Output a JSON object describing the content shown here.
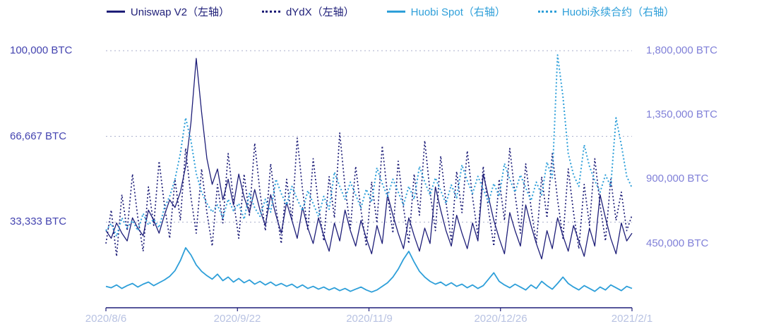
{
  "colors": {
    "navy": "#1e1e78",
    "blue": "#2e9fd9",
    "left_label": "#4444b0",
    "right_label": "#8080d8",
    "x_label": "#b8c2e2",
    "grid": "#a9aecb"
  },
  "chart_data": {
    "type": "line",
    "title": "",
    "legend_position": "top",
    "grid": "horizontal-dotted",
    "x_tick_labels": [
      "2020/8/6",
      "2020/9/22",
      "2020/11/9",
      "2020/12/26",
      "2021/2/1"
    ],
    "left_axis": {
      "ticks": [
        "100,000 BTC",
        "66,667 BTC",
        "33,333 BTC"
      ],
      "tick_values": [
        100000,
        66667,
        33333
      ],
      "min": 0,
      "max": 100000
    },
    "right_axis": {
      "ticks": [
        "1,800,000 BTC",
        "1,350,000 BTC",
        "900,000 BTC",
        "450,000 BTC"
      ],
      "tick_values": [
        1800000,
        1350000,
        900000,
        450000
      ],
      "min": 0,
      "max": 1800000
    },
    "series": [
      {
        "name": "Uniswap V2",
        "label": "Uniswap V2（左轴）",
        "axis": "left",
        "style": "solid",
        "color": "#1e1e78",
        "values": [
          30000,
          27000,
          33000,
          29000,
          26000,
          35000,
          31000,
          28000,
          38000,
          34000,
          29000,
          36000,
          42000,
          39000,
          45000,
          55000,
          72000,
          97000,
          76000,
          58000,
          48000,
          54000,
          42000,
          50000,
          40000,
          52000,
          43000,
          37000,
          46000,
          38000,
          32000,
          44000,
          36000,
          29000,
          41000,
          34000,
          27000,
          39000,
          31000,
          25000,
          35000,
          28000,
          22000,
          33000,
          26000,
          38000,
          30000,
          24000,
          34000,
          27000,
          21000,
          32000,
          25000,
          44000,
          36000,
          29000,
          23000,
          35000,
          28000,
          22000,
          31000,
          25000,
          47000,
          38000,
          30000,
          24000,
          36000,
          29000,
          23000,
          33000,
          26000,
          52000,
          43000,
          34000,
          27000,
          21000,
          37000,
          30000,
          24000,
          40000,
          32000,
          25000,
          19000,
          30000,
          23000,
          35000,
          28000,
          22000,
          32000,
          26000,
          20000,
          31000,
          24000,
          44000,
          35000,
          27000,
          21000,
          33000,
          26000,
          29000
        ]
      },
      {
        "name": "dYdX",
        "label": "dYdX（左轴）",
        "axis": "left",
        "style": "dotted",
        "color": "#1e1e78",
        "values": [
          25000,
          38000,
          20000,
          44000,
          30000,
          52000,
          35000,
          22000,
          47000,
          32000,
          57000,
          40000,
          27000,
          50000,
          34000,
          62000,
          43000,
          29000,
          54000,
          37000,
          24000,
          48000,
          33000,
          60000,
          42000,
          27000,
          52000,
          36000,
          64000,
          45000,
          30000,
          56000,
          39000,
          25000,
          50000,
          34000,
          66000,
          46000,
          30000,
          58000,
          40000,
          26000,
          51000,
          35000,
          68000,
          47000,
          31000,
          55000,
          38000,
          24000,
          49000,
          33000,
          63000,
          44000,
          29000,
          57000,
          39000,
          25000,
          52000,
          36000,
          65000,
          45000,
          30000,
          59000,
          41000,
          26000,
          53000,
          37000,
          61000,
          43000,
          28000,
          55000,
          38000,
          24000,
          50000,
          34000,
          62000,
          44000,
          29000,
          56000,
          39000,
          25000,
          51000,
          35000,
          60000,
          42000,
          27000,
          54000,
          37000,
          23000,
          48000,
          32000,
          58000,
          40000,
          26000,
          50000,
          34000,
          45000,
          30000,
          36000
        ]
      },
      {
        "name": "Huobi Spot",
        "label": "Huobi Spot（右轴）",
        "axis": "right",
        "style": "solid",
        "color": "#2e9fd9",
        "values": [
          150000,
          140000,
          160000,
          135000,
          155000,
          170000,
          145000,
          165000,
          180000,
          155000,
          175000,
          195000,
          220000,
          260000,
          330000,
          420000,
          370000,
          300000,
          255000,
          225000,
          200000,
          235000,
          190000,
          215000,
          180000,
          205000,
          175000,
          195000,
          165000,
          185000,
          160000,
          180000,
          155000,
          170000,
          150000,
          165000,
          140000,
          160000,
          135000,
          150000,
          130000,
          145000,
          125000,
          140000,
          120000,
          135000,
          115000,
          130000,
          145000,
          125000,
          110000,
          125000,
          150000,
          175000,
          215000,
          270000,
          340000,
          395000,
          320000,
          255000,
          215000,
          185000,
          165000,
          180000,
          155000,
          175000,
          150000,
          165000,
          140000,
          160000,
          135000,
          155000,
          200000,
          245000,
          185000,
          160000,
          140000,
          165000,
          145000,
          125000,
          160000,
          135000,
          185000,
          155000,
          130000,
          170000,
          215000,
          170000,
          145000,
          125000,
          155000,
          135000,
          115000,
          145000,
          125000,
          160000,
          140000,
          120000,
          150000,
          135000
        ]
      },
      {
        "name": "Huobi永续合约",
        "label": "Huobi永续合约（右轴）",
        "axis": "right",
        "style": "dotted",
        "color": "#2e9fd9",
        "values": [
          540000,
          590000,
          500000,
          630000,
          560000,
          610000,
          540000,
          660000,
          580000,
          620000,
          560000,
          700000,
          780000,
          900000,
          1080000,
          1330000,
          1170000,
          940000,
          810000,
          730000,
          670000,
          720000,
          630000,
          760000,
          680000,
          730000,
          620000,
          800000,
          700000,
          640000,
          760000,
          670000,
          900000,
          800000,
          720000,
          850000,
          760000,
          680000,
          820000,
          730000,
          640000,
          780000,
          690000,
          950000,
          850000,
          760000,
          880000,
          790000,
          700000,
          830000,
          740000,
          980000,
          870000,
          780000,
          900000,
          810000,
          720000,
          850000,
          760000,
          990000,
          880000,
          790000,
          910000,
          820000,
          730000,
          860000,
          770000,
          1000000,
          890000,
          800000,
          920000,
          830000,
          740000,
          870000,
          780000,
          1010000,
          900000,
          810000,
          930000,
          840000,
          750000,
          880000,
          790000,
          1020000,
          910000,
          1770000,
          1480000,
          1080000,
          930000,
          850000,
          1140000,
          990000,
          890000,
          810000,
          930000,
          850000,
          1330000,
          1140000,
          920000,
          840000
        ]
      }
    ]
  }
}
